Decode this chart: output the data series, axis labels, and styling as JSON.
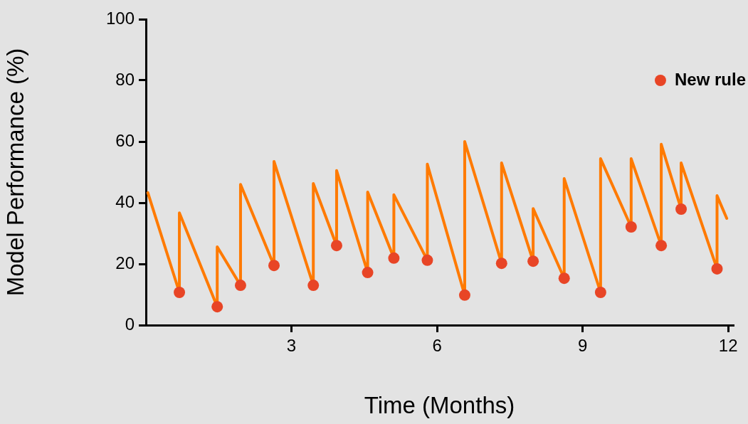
{
  "chart_data": {
    "type": "line",
    "xlabel": "Time (Months)",
    "ylabel": "Model Performance (%)",
    "xlim": [
      0,
      12.1
    ],
    "ylim": [
      0,
      100
    ],
    "xticks": [
      3,
      6,
      9,
      12
    ],
    "yticks": [
      0,
      20,
      40,
      60,
      80,
      100
    ],
    "grid": false,
    "legend": "top right",
    "line_style": "solid",
    "series": [
      {
        "color": "#ff7a00",
        "marker": "none",
        "x": [
          0.04,
          0.69,
          0.69,
          1.47,
          1.47,
          1.95,
          1.95,
          2.64,
          2.64,
          3.45,
          3.45,
          3.93,
          3.93,
          4.57,
          4.57,
          5.11,
          5.11,
          5.8,
          5.8,
          6.57,
          6.57,
          7.33,
          7.33,
          7.98,
          7.98,
          8.62,
          8.62,
          9.37,
          9.37,
          10.0,
          10.0,
          10.62,
          10.62,
          11.03,
          11.03,
          11.77,
          11.77,
          11.97
        ],
        "values": [
          43.3,
          10.7,
          36.7,
          6.0,
          25.6,
          13.0,
          46.0,
          19.5,
          53.5,
          13.0,
          46.3,
          26.0,
          50.5,
          17.2,
          43.5,
          21.9,
          42.6,
          21.2,
          52.6,
          9.8,
          60.0,
          20.2,
          53.0,
          20.9,
          38.1,
          15.3,
          47.9,
          10.7,
          54.4,
          32.1,
          54.4,
          26.0,
          59.1,
          37.9,
          53.0,
          18.4,
          42.3,
          34.9
        ]
      },
      {
        "type": "scatter",
        "name": "New rule",
        "color": "#e84526",
        "marker": "circle",
        "x": [
          0.69,
          1.47,
          1.95,
          2.64,
          3.45,
          3.93,
          4.57,
          5.11,
          5.8,
          6.57,
          7.33,
          7.98,
          8.62,
          9.37,
          10.0,
          10.62,
          11.03,
          11.77
        ],
        "values": [
          10.7,
          6.0,
          13.0,
          19.5,
          13.0,
          26.0,
          17.2,
          21.9,
          21.2,
          9.8,
          20.2,
          20.9,
          15.3,
          10.7,
          32.1,
          26.0,
          37.9,
          18.4
        ]
      }
    ]
  }
}
